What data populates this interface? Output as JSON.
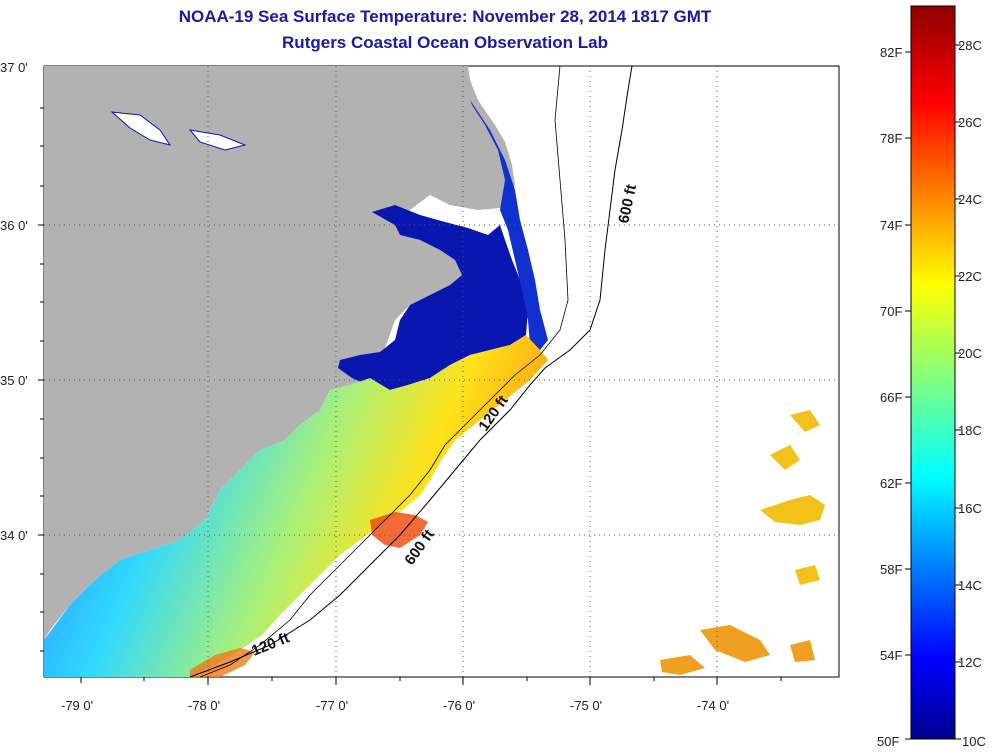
{
  "header": {
    "title": "NOAA-19 Sea Surface Temperature:  November 28, 2014 1817 GMT",
    "subtitle": "Rutgers Coastal Ocean Observation Lab"
  },
  "axes": {
    "lat_labels": [
      "37 0'",
      "36 0'",
      "35 0'",
      "34 0'"
    ],
    "lon_labels": [
      "-79 0'",
      "-78 0'",
      "-77 0'",
      "-76 0'",
      "-75 0'",
      "-74 0'"
    ]
  },
  "contours": {
    "label_600_north": "600 ft",
    "label_120_mid": "120 ft",
    "label_600_south": "600 ft",
    "label_120_south": "120 ft"
  },
  "colorbar": {
    "f_labels": [
      "82F",
      "78F",
      "74F",
      "70F",
      "66F",
      "62F",
      "58F",
      "54F",
      "50F"
    ],
    "c_labels": [
      "28C",
      "26C",
      "24C",
      "22C",
      "20C",
      "18C",
      "16C",
      "14C",
      "12C",
      "10C"
    ]
  },
  "colors": {
    "land": "#b2b2b2",
    "cold": "#00008f",
    "warm": "#8f0000",
    "title": "#1a1aa6"
  }
}
